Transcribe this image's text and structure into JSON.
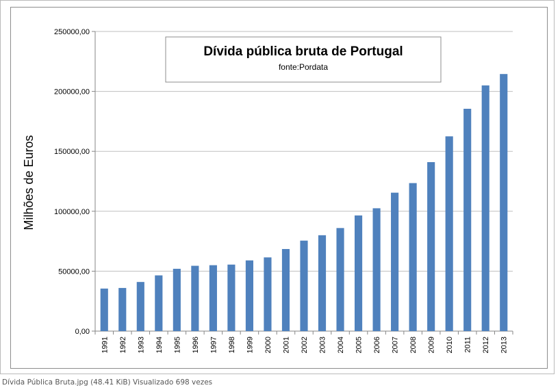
{
  "chart_data": {
    "type": "bar",
    "title": "Dívida pública bruta de Portugal",
    "subtitle": "fonte:Pordata",
    "xlabel": "",
    "ylabel": "Milhões de Euros",
    "ylim": [
      0,
      250000
    ],
    "yticks": [
      0,
      50000,
      100000,
      150000,
      200000,
      250000
    ],
    "ytick_labels": [
      "0,00",
      "50000,00",
      "100000,00",
      "150000,00",
      "200000,00",
      "250000,00"
    ],
    "grid": true,
    "bar_color": "#4f81bd",
    "categories": [
      "1991",
      "1992",
      "1993",
      "1994",
      "1995",
      "1996",
      "1997",
      "1998",
      "1999",
      "2000",
      "2001",
      "2002",
      "2003",
      "2004",
      "2005",
      "2006",
      "2007",
      "2008",
      "2009",
      "2010",
      "2011",
      "2012",
      "2013"
    ],
    "values": [
      35500,
      36000,
      41000,
      46500,
      52000,
      54500,
      55000,
      55500,
      59000,
      61500,
      68500,
      75500,
      80000,
      86000,
      96500,
      102500,
      115500,
      123500,
      141000,
      162500,
      185500,
      205000,
      214500
    ]
  },
  "caption": "Dívida Pública Bruta.jpg (48.41 KiB) Visualizado 698 vezes"
}
